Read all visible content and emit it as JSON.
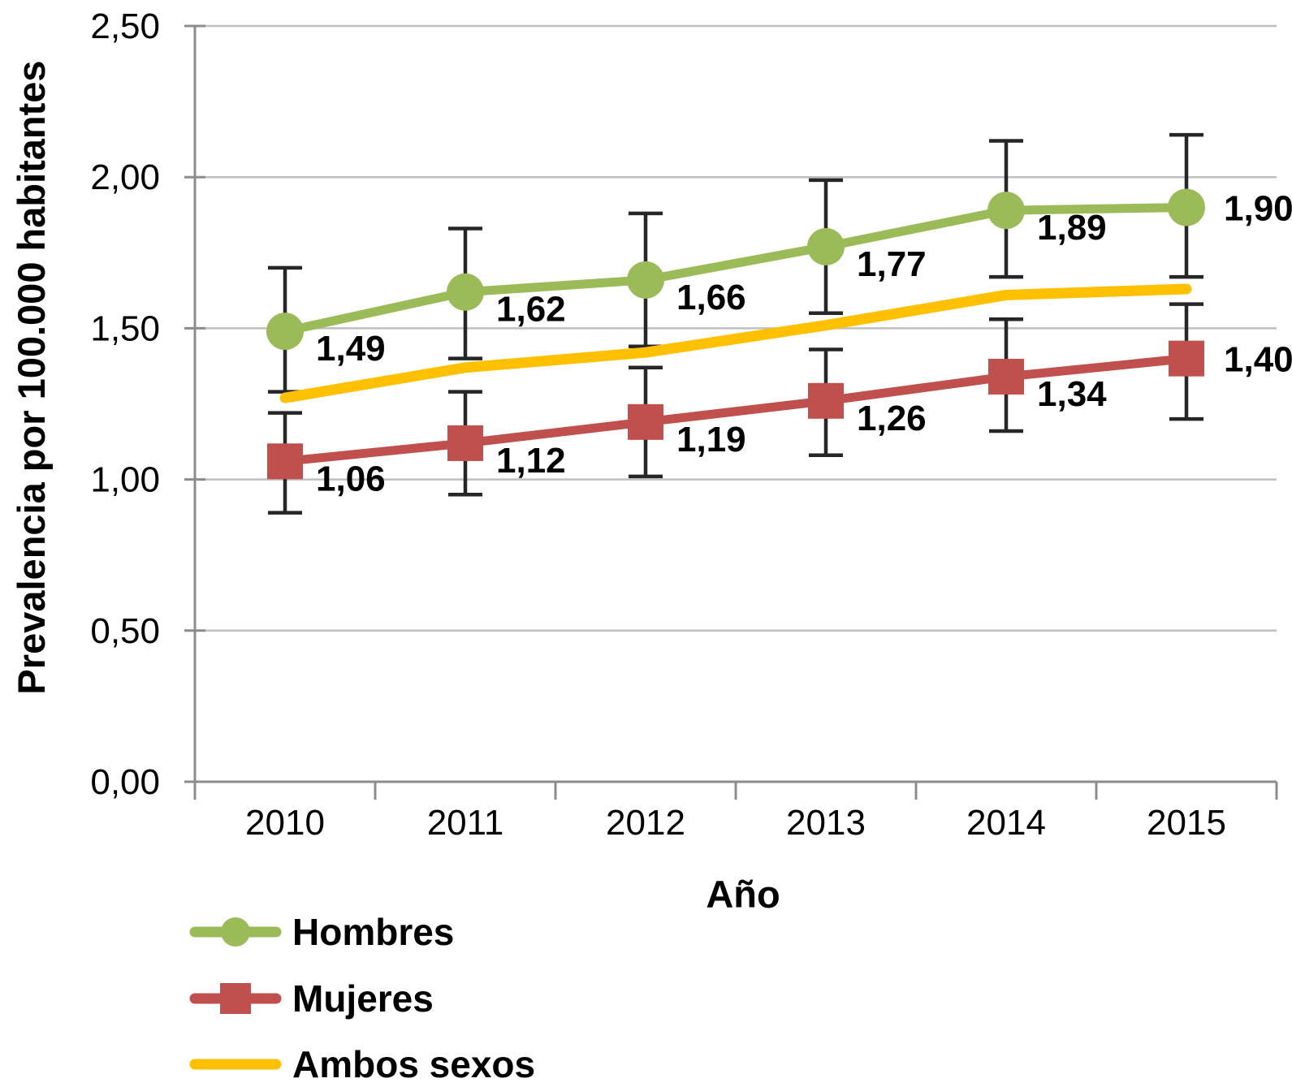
{
  "chart_data": {
    "type": "line",
    "title": "",
    "xlabel": "Año",
    "ylabel": "Prevalencia por 100.000 habitantes",
    "x": [
      "2010",
      "2011",
      "2012",
      "2013",
      "2014",
      "2015"
    ],
    "ylim": [
      0,
      2.5
    ],
    "grid": true,
    "grid_color": "#BFBFBF",
    "axis_color": "#8C8C8C",
    "error_bar_color": "#262626",
    "legend_position": "bottom-left",
    "yticks": [
      {
        "value": 0.0,
        "label": "0,00"
      },
      {
        "value": 0.5,
        "label": "0,50"
      },
      {
        "value": 1.0,
        "label": "1,00"
      },
      {
        "value": 1.5,
        "label": "1,50"
      },
      {
        "value": 2.0,
        "label": "2,00"
      },
      {
        "value": 2.5,
        "label": "2,50"
      }
    ],
    "series": [
      {
        "name": "Hombres",
        "color": "#9BBB59",
        "marker": "circle",
        "values": [
          1.49,
          1.62,
          1.66,
          1.77,
          1.89,
          1.9
        ],
        "labels": [
          "1,49",
          "1,62",
          "1,66",
          "1,77",
          "1,89",
          "1,90"
        ],
        "error_low": [
          1.29,
          1.4,
          1.44,
          1.55,
          1.67,
          1.67
        ],
        "error_high": [
          1.7,
          1.83,
          1.88,
          1.99,
          2.12,
          2.14
        ]
      },
      {
        "name": "Mujeres",
        "color": "#C0504D",
        "marker": "square",
        "values": [
          1.06,
          1.12,
          1.19,
          1.26,
          1.34,
          1.4
        ],
        "labels": [
          "1,06",
          "1,12",
          "1,19",
          "1,26",
          "1,34",
          "1,40"
        ],
        "error_low": [
          0.89,
          0.95,
          1.01,
          1.08,
          1.16,
          1.2
        ],
        "error_high": [
          1.22,
          1.29,
          1.37,
          1.43,
          1.53,
          1.58
        ]
      },
      {
        "name": "Ambos sexos",
        "color": "#FFC000",
        "marker": "none",
        "values": [
          1.27,
          1.37,
          1.42,
          1.51,
          1.61,
          1.63
        ],
        "labels": null
      }
    ]
  }
}
